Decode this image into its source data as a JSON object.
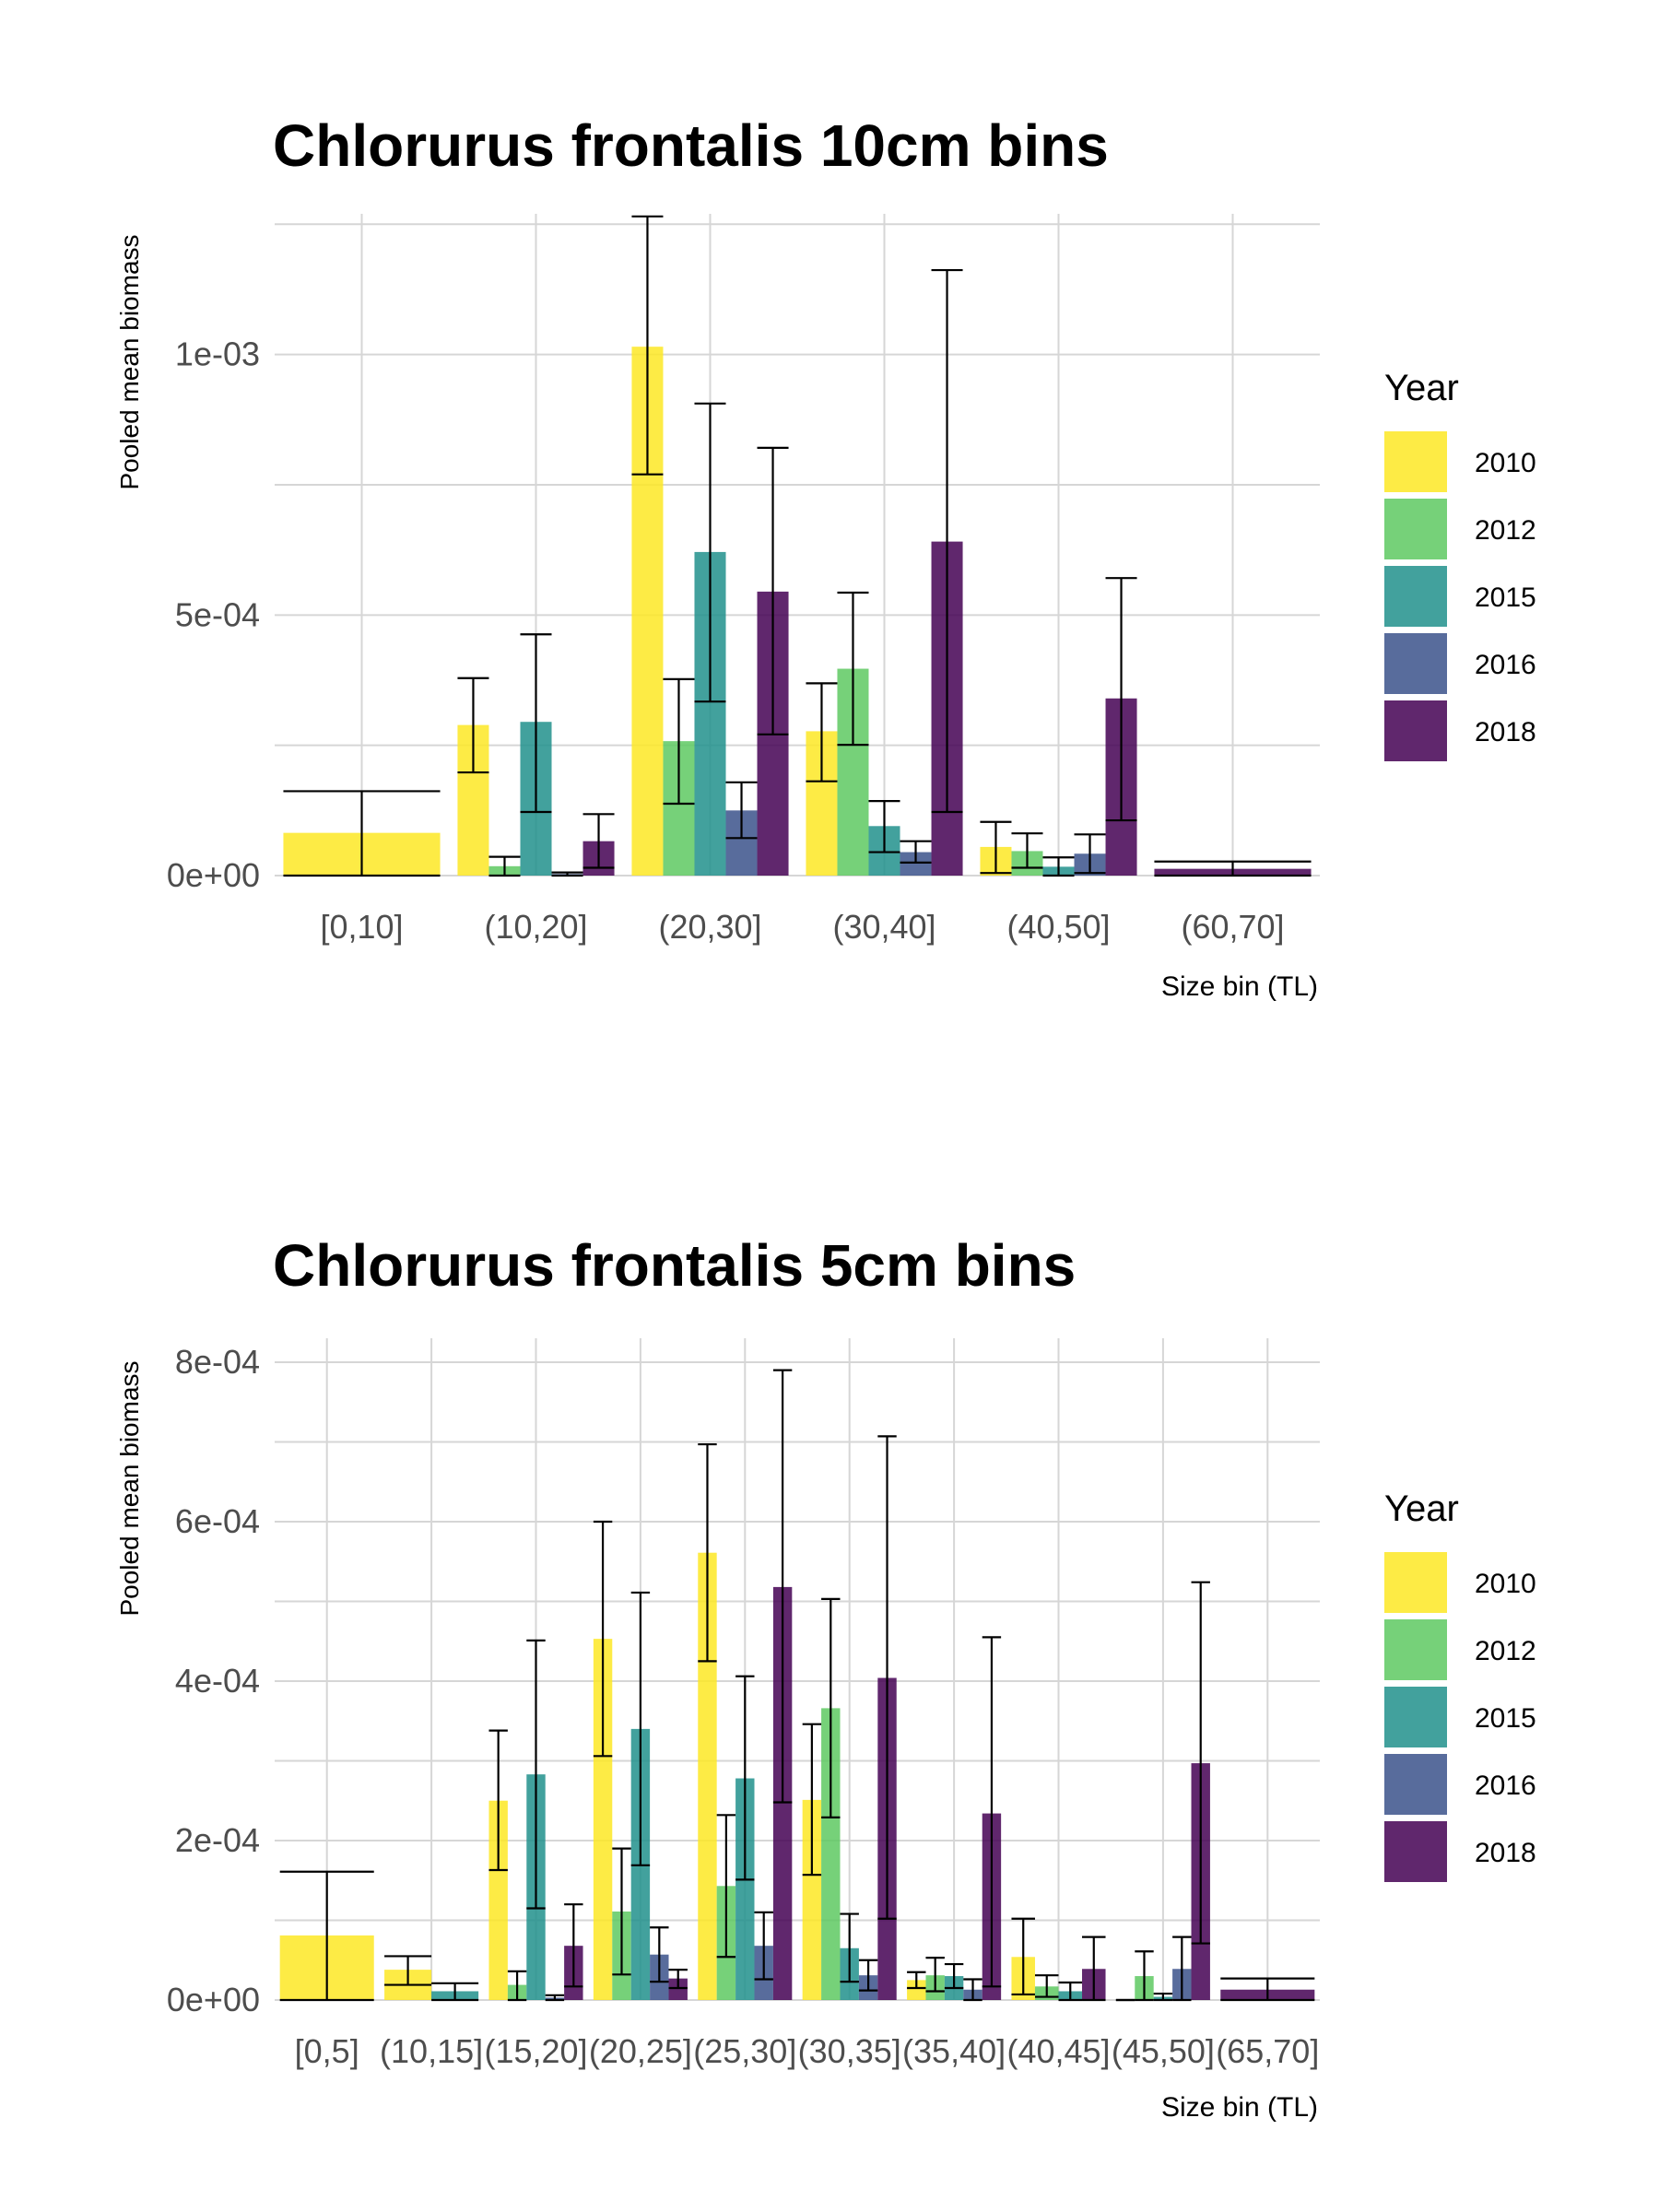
{
  "legend": {
    "title": "Year",
    "items": [
      {
        "label": "2010",
        "color": "#FDE725"
      },
      {
        "label": "2012",
        "color": "#5EC962"
      },
      {
        "label": "2015",
        "color": "#21918C"
      },
      {
        "label": "2016",
        "color": "#3B528B"
      },
      {
        "label": "2018",
        "color": "#440154"
      }
    ]
  },
  "chart_data": [
    {
      "type": "bar",
      "title": "Chlorurus frontalis 10cm bins",
      "xlabel": "Size bin (TL)",
      "ylabel": "Pooled mean biomass",
      "ylim": [
        0,
        0.00127
      ],
      "yticks": [
        0,
        0.0005,
        0.001
      ],
      "ytick_labels": [
        "0e+00",
        "5e-04",
        "1e-03"
      ],
      "categories": [
        "[0,10]",
        "(10,20]",
        "(20,30]",
        "(30,40]",
        "(40,50]",
        "(60,70]"
      ],
      "groups": [
        {
          "category": "[0,10]",
          "bars": [
            {
              "year": "2010",
              "value": 8.2e-05,
              "lo": 0.0,
              "hi": 0.000162
            }
          ]
        },
        {
          "category": "(10,20]",
          "bars": [
            {
              "year": "2010",
              "value": 0.000289,
              "lo": 0.000198,
              "hi": 0.000379
            },
            {
              "year": "2012",
              "value": 1.8e-05,
              "lo": 0.0,
              "hi": 3.6e-05
            },
            {
              "year": "2015",
              "value": 0.000295,
              "lo": 0.000122,
              "hi": 0.000463
            },
            {
              "year": "2016",
              "value": 3e-06,
              "lo": 0.0,
              "hi": 6e-06
            },
            {
              "year": "2018",
              "value": 6.6e-05,
              "lo": 1.5e-05,
              "hi": 0.000118
            }
          ]
        },
        {
          "category": "(20,30]",
          "bars": [
            {
              "year": "2010",
              "value": 0.001015,
              "lo": 0.00077,
              "hi": 0.001265
            },
            {
              "year": "2012",
              "value": 0.000258,
              "lo": 0.000138,
              "hi": 0.000377
            },
            {
              "year": "2015",
              "value": 0.000621,
              "lo": 0.000334,
              "hi": 0.000906
            },
            {
              "year": "2016",
              "value": 0.000125,
              "lo": 7.2e-05,
              "hi": 0.000179
            },
            {
              "year": "2018",
              "value": 0.000545,
              "lo": 0.000271,
              "hi": 0.000821
            }
          ]
        },
        {
          "category": "(30,40]",
          "bars": [
            {
              "year": "2010",
              "value": 0.000277,
              "lo": 0.000181,
              "hi": 0.000369
            },
            {
              "year": "2012",
              "value": 0.000397,
              "lo": 0.000251,
              "hi": 0.000543
            },
            {
              "year": "2015",
              "value": 9.5e-05,
              "lo": 4.5e-05,
              "hi": 0.000143
            },
            {
              "year": "2016",
              "value": 4.5e-05,
              "lo": 2.5e-05,
              "hi": 6.6e-05
            },
            {
              "year": "2018",
              "value": 0.000641,
              "lo": 0.000122,
              "hi": 0.001162
            }
          ]
        },
        {
          "category": "(40,50]",
          "bars": [
            {
              "year": "2010",
              "value": 5.5e-05,
              "lo": 5e-06,
              "hi": 0.000103
            },
            {
              "year": "2012",
              "value": 4.7e-05,
              "lo": 1.5e-05,
              "hi": 8.1e-05
            },
            {
              "year": "2015",
              "value": 1.7e-05,
              "lo": 0.0,
              "hi": 3.5e-05
            },
            {
              "year": "2016",
              "value": 4.2e-05,
              "lo": 5e-06,
              "hi": 7.9e-05
            },
            {
              "year": "2018",
              "value": 0.00034,
              "lo": 0.000106,
              "hi": 0.000571
            }
          ]
        },
        {
          "category": "(60,70]",
          "bars": [
            {
              "year": "2018",
              "value": 1.3e-05,
              "lo": 0.0,
              "hi": 2.7e-05
            }
          ]
        }
      ]
    },
    {
      "type": "bar",
      "title": "Chlorurus frontalis 5cm bins",
      "xlabel": "Size bin (TL)",
      "ylabel": "Pooled mean biomass",
      "ylim": [
        0,
        0.00083
      ],
      "yticks": [
        0,
        0.0002,
        0.0004,
        0.0006,
        0.0008
      ],
      "ytick_labels": [
        "0e+00",
        "2e-04",
        "4e-04",
        "6e-04",
        "8e-04"
      ],
      "categories": [
        "[0,5]",
        "(10,15]",
        "(15,20]",
        "(20,25]",
        "(25,30]",
        "(30,35]",
        "(35,40]",
        "(40,45]",
        "(45,50]",
        "(65,70]"
      ],
      "groups": [
        {
          "category": "[0,5]",
          "bars": [
            {
              "year": "2010",
              "value": 8.1e-05,
              "lo": 0.0,
              "hi": 0.000161
            }
          ]
        },
        {
          "category": "(10,15]",
          "bars": [
            {
              "year": "2010",
              "value": 3.8e-05,
              "lo": 1.9e-05,
              "hi": 5.5e-05
            },
            {
              "year": "2015",
              "value": 1.1e-05,
              "lo": 0.0,
              "hi": 2.1e-05
            }
          ]
        },
        {
          "category": "(15,20]",
          "bars": [
            {
              "year": "2010",
              "value": 0.00025,
              "lo": 0.000163,
              "hi": 0.000338
            },
            {
              "year": "2012",
              "value": 1.9e-05,
              "lo": 0.0,
              "hi": 3.6e-05
            },
            {
              "year": "2015",
              "value": 0.000283,
              "lo": 0.000115,
              "hi": 0.000451
            },
            {
              "year": "2016",
              "value": 3e-06,
              "lo": 0.0,
              "hi": 6e-06
            },
            {
              "year": "2018",
              "value": 6.8e-05,
              "lo": 1.7e-05,
              "hi": 0.00012
            }
          ]
        },
        {
          "category": "(20,25]",
          "bars": [
            {
              "year": "2010",
              "value": 0.000453,
              "lo": 0.000306,
              "hi": 0.0006
            },
            {
              "year": "2012",
              "value": 0.000111,
              "lo": 3.2e-05,
              "hi": 0.00019
            },
            {
              "year": "2015",
              "value": 0.00034,
              "lo": 0.000169,
              "hi": 0.000511
            },
            {
              "year": "2016",
              "value": 5.7e-05,
              "lo": 2.3e-05,
              "hi": 9.1e-05
            },
            {
              "year": "2018",
              "value": 2.7e-05,
              "lo": 1.5e-05,
              "hi": 3.8e-05
            }
          ]
        },
        {
          "category": "(25,30]",
          "bars": [
            {
              "year": "2010",
              "value": 0.000561,
              "lo": 0.000425,
              "hi": 0.000697
            },
            {
              "year": "2012",
              "value": 0.000143,
              "lo": 5.4e-05,
              "hi": 0.000232
            },
            {
              "year": "2015",
              "value": 0.000278,
              "lo": 0.000151,
              "hi": 0.000406
            },
            {
              "year": "2016",
              "value": 6.8e-05,
              "lo": 2.6e-05,
              "hi": 0.00011
            },
            {
              "year": "2018",
              "value": 0.000518,
              "lo": 0.000248,
              "hi": 0.00079
            }
          ]
        },
        {
          "category": "(30,35]",
          "bars": [
            {
              "year": "2010",
              "value": 0.000251,
              "lo": 0.000157,
              "hi": 0.000346
            },
            {
              "year": "2012",
              "value": 0.000366,
              "lo": 0.000229,
              "hi": 0.000503
            },
            {
              "year": "2015",
              "value": 6.5e-05,
              "lo": 2.3e-05,
              "hi": 0.000108
            },
            {
              "year": "2016",
              "value": 3.1e-05,
              "lo": 1.2e-05,
              "hi": 5e-05
            },
            {
              "year": "2018",
              "value": 0.000404,
              "lo": 0.000102,
              "hi": 0.000707
            }
          ]
        },
        {
          "category": "(35,40]",
          "bars": [
            {
              "year": "2010",
              "value": 2.5e-05,
              "lo": 1.5e-05,
              "hi": 3.5e-05
            },
            {
              "year": "2012",
              "value": 3.1e-05,
              "lo": 1.1e-05,
              "hi": 5.3e-05
            },
            {
              "year": "2015",
              "value": 3e-05,
              "lo": 1.5e-05,
              "hi": 4.5e-05
            },
            {
              "year": "2016",
              "value": 1.3e-05,
              "lo": 0.0,
              "hi": 2.6e-05
            },
            {
              "year": "2018",
              "value": 0.000234,
              "lo": 1.7e-05,
              "hi": 0.000455
            }
          ]
        },
        {
          "category": "(40,45]",
          "bars": [
            {
              "year": "2010",
              "value": 5.4e-05,
              "lo": 7e-06,
              "hi": 0.000102
            },
            {
              "year": "2012",
              "value": 1.7e-05,
              "lo": 4e-06,
              "hi": 3.1e-05
            },
            {
              "year": "2015",
              "value": 1.1e-05,
              "lo": 0.0,
              "hi": 2.2e-05
            },
            {
              "year": "2018",
              "value": 3.9e-05,
              "lo": 0.0,
              "hi": 7.9e-05
            }
          ]
        },
        {
          "category": "(45,50]",
          "bars": [
            {
              "year": "2010",
              "value": 0.0,
              "lo": 0.0,
              "hi": 0.0
            },
            {
              "year": "2012",
              "value": 3e-05,
              "lo": 0.0,
              "hi": 6.1e-05
            },
            {
              "year": "2015",
              "value": 4e-06,
              "lo": 0.0,
              "hi": 8e-06
            },
            {
              "year": "2016",
              "value": 3.9e-05,
              "lo": 0.0,
              "hi": 7.9e-05
            },
            {
              "year": "2018",
              "value": 0.000297,
              "lo": 7.1e-05,
              "hi": 0.000524
            }
          ]
        },
        {
          "category": "(65,70]",
          "bars": [
            {
              "year": "2018",
              "value": 1.3e-05,
              "lo": 0.0,
              "hi": 2.7e-05
            }
          ]
        }
      ]
    }
  ]
}
